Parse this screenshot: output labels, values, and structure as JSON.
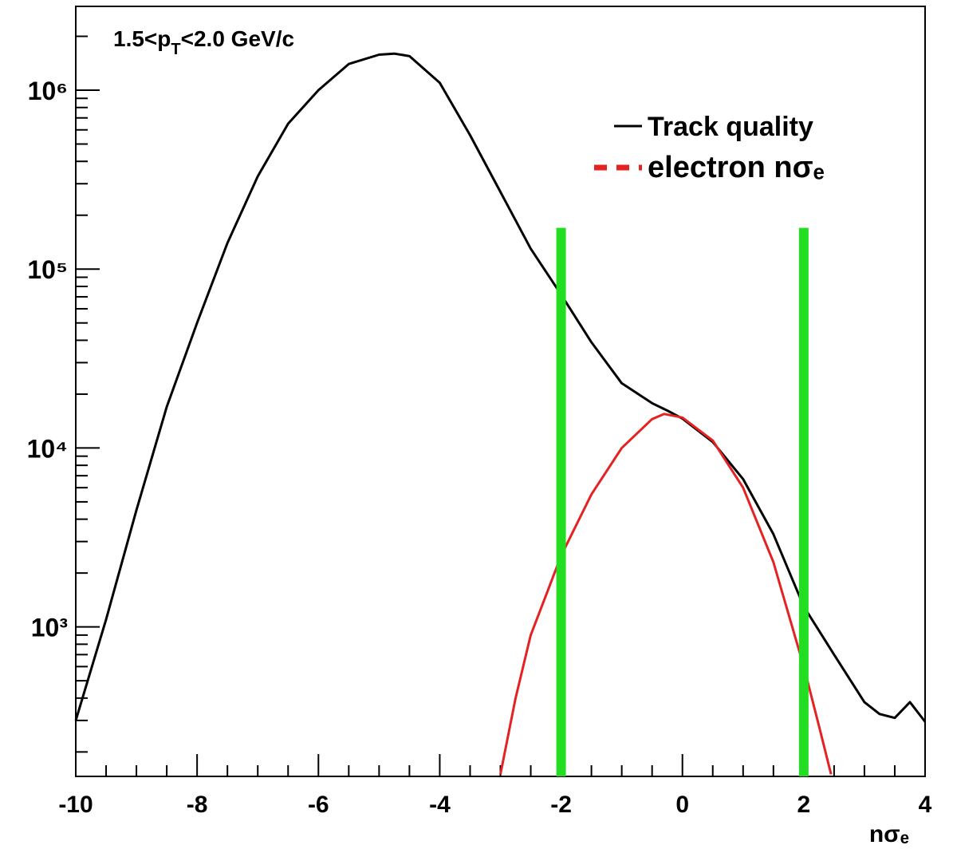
{
  "chart_data": {
    "type": "line",
    "annotation_parts": [
      "1.5<p",
      "T",
      "<2.0 GeV/c"
    ],
    "x_label": "nσₑ",
    "log_y": true,
    "grid": false,
    "legend": "upper right",
    "xlim": [
      -10,
      4
    ],
    "ylim": [
      146,
      2940000
    ],
    "xticks": [
      -10,
      -8,
      -6,
      -4,
      -2,
      0,
      2,
      4
    ],
    "yticks": [
      {
        "value": 1000,
        "label": "10³"
      },
      {
        "value": 10000,
        "label": "10⁴"
      },
      {
        "value": 100000,
        "label": "10⁵"
      },
      {
        "value": 1000000,
        "label": "10⁶"
      }
    ],
    "series": [
      {
        "name": "Track quality",
        "color": "#000000",
        "style": "solid",
        "x": [
          -10,
          -9.5,
          -9,
          -8.5,
          -8,
          -7.5,
          -7,
          -6.5,
          -6,
          -5.5,
          -5,
          -4.75,
          -4.5,
          -4,
          -3.5,
          -3,
          -2.5,
          -2,
          -1.5,
          -1,
          -0.5,
          -0.25,
          0,
          0.5,
          1,
          1.5,
          2,
          2.5,
          3,
          3.25,
          3.5,
          3.75,
          4
        ],
        "values": [
          300,
          1100,
          4500,
          17000,
          50000,
          140000,
          330000,
          650000,
          1000000,
          1400000,
          1580000,
          1600000,
          1550000,
          1100000,
          560000,
          270000,
          130000,
          72000,
          39000,
          23000,
          17800,
          16200,
          14600,
          10800,
          6700,
          3300,
          1300,
          700,
          380,
          326,
          310,
          380,
          295
        ]
      },
      {
        "name": "electron nσₑ",
        "color": "#e52222",
        "style": "dashed",
        "x": [
          -3,
          -2.75,
          -2.5,
          -2.25,
          -2,
          -1.5,
          -1,
          -0.5,
          -0.3,
          0,
          0.5,
          1,
          1.5,
          2,
          2.25,
          2.45
        ],
        "values": [
          150,
          400,
          900,
          1500,
          2500,
          5500,
          10000,
          14500,
          15500,
          14800,
          11000,
          6000,
          2300,
          600,
          280,
          150
        ]
      }
    ],
    "cut_lines": {
      "x": [
        -2,
        2
      ],
      "top": 170000,
      "color": "#22dd22"
    }
  }
}
